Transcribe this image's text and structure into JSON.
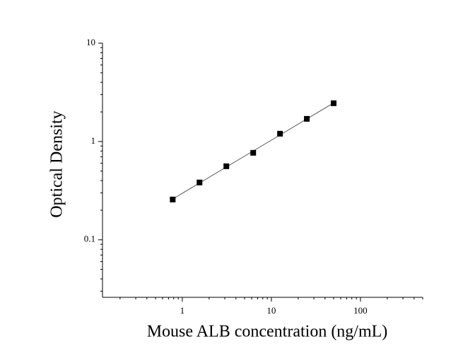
{
  "chart_data": {
    "type": "scatter",
    "x_label": "Mouse ALB concentration (ng/mL)",
    "y_label": "Optical Density",
    "x": [
      0.78,
      1.56,
      3.12,
      6.25,
      12.5,
      25,
      50
    ],
    "values": [
      0.257,
      0.383,
      0.56,
      0.767,
      1.2,
      1.7,
      2.45
    ],
    "color": "#000000",
    "xscale": "log",
    "yscale": "log",
    "xlim": [
      0.127,
      500
    ],
    "ylim": [
      0.026,
      10
    ],
    "xticks": [
      1,
      10,
      100
    ],
    "yticks": [
      0.1,
      1,
      10
    ],
    "fit_line": true
  }
}
